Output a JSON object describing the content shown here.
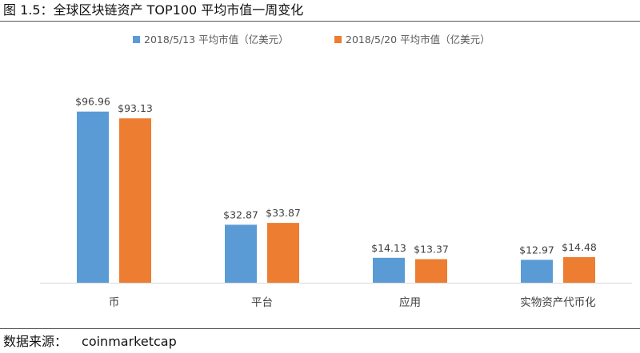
{
  "figure": {
    "title": "图 1.5：全球区块链资产 TOP100 平均市值一周变化",
    "source_label": "数据来源：",
    "source_value": "coinmarketcap"
  },
  "colors": {
    "series1": "#5B9BD5",
    "series2": "#ED7D31",
    "axis": "#D9D9D9"
  },
  "chart_data": {
    "type": "bar",
    "categories": [
      "币",
      "平台",
      "应用",
      "实物资产代币化"
    ],
    "series": [
      {
        "name": "2018/5/13 平均市值（亿美元）",
        "values": [
          96.96,
          32.87,
          14.13,
          12.97
        ],
        "labels": [
          "$96.96",
          "$32.87",
          "$14.13",
          "$12.97"
        ]
      },
      {
        "name": "2018/5/20 平均市值（亿美元）",
        "values": [
          93.13,
          33.87,
          13.37,
          14.48
        ],
        "labels": [
          "$93.13",
          "$33.87",
          "$13.37",
          "$14.48"
        ]
      }
    ],
    "ylim": [
      0,
      100
    ],
    "grid": false,
    "legend": "top-center"
  }
}
